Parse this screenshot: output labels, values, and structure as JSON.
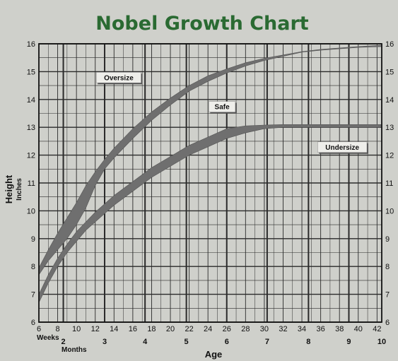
{
  "chart_data": {
    "type": "area",
    "title": "Nobel Growth Chart",
    "xlabel": "Age",
    "ylabel": "Height",
    "ylabel_unit": "Inches",
    "x_unit_weeks": "Weeks",
    "x_unit_months": "Months",
    "xlim": [
      6,
      42.5
    ],
    "ylim": [
      6,
      16
    ],
    "x_ticks_weeks": [
      "6",
      "8",
      "10",
      "12",
      "14",
      "16",
      "18",
      "20",
      "22",
      "24",
      "26",
      "28",
      "30",
      "32",
      "34",
      "36",
      "38",
      "40",
      "42"
    ],
    "month_ticks": [
      {
        "label": "2",
        "week": 8.6
      },
      {
        "label": "3",
        "week": 13
      },
      {
        "label": "4",
        "week": 17.3
      },
      {
        "label": "5",
        "week": 21.7
      },
      {
        "label": "6",
        "week": 26
      },
      {
        "label": "7",
        "week": 30.3
      },
      {
        "label": "8",
        "week": 34.7
      },
      {
        "label": "9",
        "week": 39
      },
      {
        "label": "10",
        "week": 43.3
      }
    ],
    "y_ticks": [
      "6",
      "7",
      "8",
      "9",
      "10",
      "11",
      "12",
      "13",
      "14",
      "15",
      "16"
    ],
    "grid": true,
    "colors": {
      "band": "#6f6f6f",
      "grid": "#2a2a2a",
      "title": "#2a6a32",
      "background": "#cfd0cb"
    },
    "series": [
      {
        "x": [
          6,
          7,
          8,
          9,
          10,
          11,
          12,
          13,
          14,
          16,
          18,
          20,
          22,
          24,
          26,
          28,
          30,
          32,
          34,
          36,
          38,
          40,
          42.5
        ],
        "lower": [
          6.7,
          7.4,
          8.0,
          8.5,
          8.9,
          9.3,
          9.6,
          9.9,
          10.2,
          10.7,
          11.2,
          11.6,
          12.0,
          12.3,
          12.6,
          12.8,
          12.95,
          13.0,
          13.0,
          13.0,
          13.0,
          13.0,
          13.0
        ],
        "upper": [
          7.0,
          7.7,
          8.3,
          8.8,
          9.25,
          9.6,
          9.95,
          10.25,
          10.55,
          11.05,
          11.55,
          11.95,
          12.35,
          12.65,
          12.95,
          13.05,
          13.08,
          13.1,
          13.1,
          13.1,
          13.1,
          13.1,
          13.1
        ]
      },
      {
        "x": [
          6,
          7,
          8,
          9,
          10,
          11,
          12,
          13,
          14,
          16,
          18,
          20,
          22,
          24,
          26,
          28,
          30,
          32,
          34,
          36,
          38,
          40,
          42.5
        ],
        "lower": [
          7.7,
          8.2,
          8.6,
          9.0,
          9.5,
          10.1,
          10.9,
          11.5,
          11.9,
          12.6,
          13.25,
          13.8,
          14.3,
          14.65,
          14.95,
          15.2,
          15.4,
          15.55,
          15.7,
          15.77,
          15.82,
          15.87,
          15.9
        ],
        "upper": [
          7.95,
          8.6,
          9.2,
          9.75,
          10.3,
          10.9,
          11.4,
          11.85,
          12.25,
          12.95,
          13.55,
          14.05,
          14.5,
          14.85,
          15.1,
          15.32,
          15.48,
          15.6,
          15.72,
          15.8,
          15.85,
          15.9,
          15.95
        ]
      }
    ],
    "annotations": [
      {
        "text": "Oversize",
        "x": 14.5,
        "y": 14.75
      },
      {
        "text": "Safe",
        "x": 25.5,
        "y": 13.7
      },
      {
        "text": "Undersize",
        "x": 38.3,
        "y": 12.25
      }
    ]
  }
}
